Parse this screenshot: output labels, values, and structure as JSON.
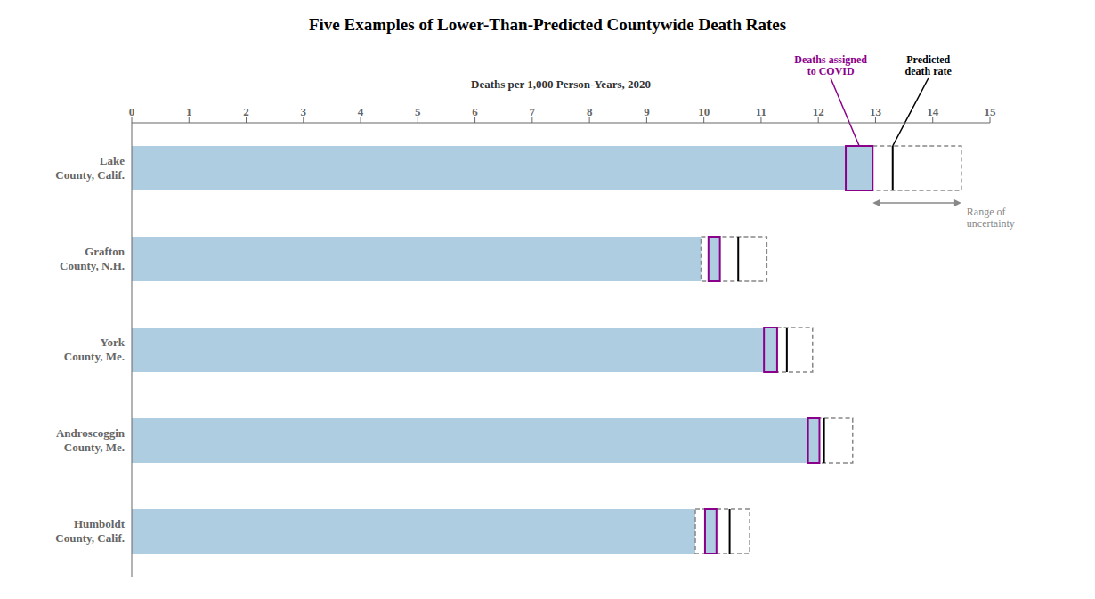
{
  "chart_data": {
    "type": "bar",
    "orientation": "horizontal",
    "title": "Five Examples of Lower-Than-Predicted Countywide Death Rates",
    "xlabel": "Deaths per 1,000 Person-Years, 2020",
    "categories": [
      "Lake\nCounty, Calif.",
      "Grafton\nCounty, N.H.",
      "York\nCounty, Me.",
      "Androscoggin\nCounty, Me.",
      "Humboldt\nCounty, Calif."
    ],
    "values": [
      12.48,
      10.18,
      11.08,
      11.82,
      10.02
    ],
    "color": "#aecde0",
    "covid_box": {
      "left": [
        12.48,
        10.08,
        11.05,
        11.82,
        10.02
      ],
      "right": [
        12.95,
        10.28,
        11.28,
        12.02,
        10.22
      ],
      "color": "#8B008B",
      "label": "Deaths assigned\nto COVID"
    },
    "predicted": {
      "values": [
        13.3,
        10.6,
        11.45,
        12.1,
        10.45
      ],
      "color": "#000000",
      "label": "Predicted\ndeath rate"
    },
    "uncertainty": {
      "left": [
        12.95,
        9.95,
        11.15,
        11.85,
        9.85
      ],
      "right": [
        14.5,
        11.1,
        11.9,
        12.6,
        10.8
      ],
      "color": "#888888",
      "label": "Range of\nuncertainty"
    },
    "xlim": [
      0,
      15
    ],
    "xticks": [
      0,
      1,
      2,
      3,
      4,
      5,
      6,
      7,
      8,
      9,
      10,
      11,
      12,
      13,
      14,
      15
    ],
    "grid": false
  }
}
